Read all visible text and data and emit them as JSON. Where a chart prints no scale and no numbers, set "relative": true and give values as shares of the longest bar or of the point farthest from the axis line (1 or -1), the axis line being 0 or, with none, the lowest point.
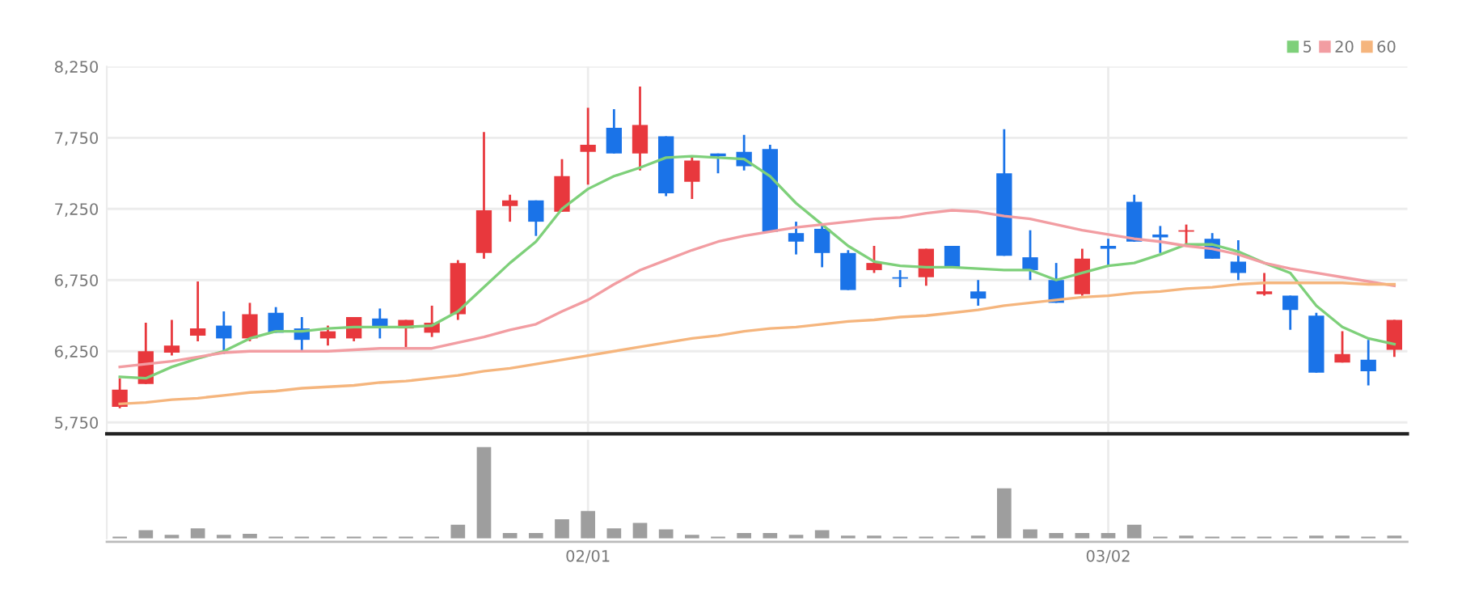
{
  "chart_data": [
    {
      "type": "candlestick",
      "categories": [
        null,
        null,
        null,
        null,
        null,
        null,
        null,
        null,
        null,
        null,
        null,
        null,
        null,
        null,
        null,
        null,
        null,
        null,
        null,
        null,
        null,
        null,
        null,
        null,
        null,
        null,
        null,
        null,
        null,
        null,
        null,
        null,
        null,
        null,
        null,
        null,
        null,
        null,
        null,
        null,
        null,
        null,
        null,
        null,
        null,
        null,
        null,
        null,
        null,
        null
      ],
      "ohlc": [
        [
          5860,
          6060,
          5850,
          5980
        ],
        [
          6020,
          6450,
          6020,
          6250
        ],
        [
          6240,
          6470,
          6220,
          6290
        ],
        [
          6360,
          6740,
          6320,
          6410
        ],
        [
          6430,
          6530,
          6230,
          6340
        ],
        [
          6340,
          6590,
          6320,
          6510
        ],
        [
          6520,
          6560,
          6380,
          6380
        ],
        [
          6410,
          6490,
          6250,
          6330
        ],
        [
          6340,
          6430,
          6290,
          6390
        ],
        [
          6340,
          6490,
          6320,
          6490
        ],
        [
          6480,
          6550,
          6340,
          6420
        ],
        [
          6410,
          6470,
          6280,
          6470
        ],
        [
          6380,
          6570,
          6350,
          6450
        ],
        [
          6510,
          6890,
          6470,
          6870
        ],
        [
          6940,
          7790,
          6900,
          7240
        ],
        [
          7270,
          7350,
          7160,
          7310
        ],
        [
          7310,
          7310,
          7060,
          7160
        ],
        [
          7230,
          7600,
          7230,
          7480
        ],
        [
          7650,
          7960,
          7420,
          7700
        ],
        [
          7820,
          7950,
          7640,
          7640
        ],
        [
          7640,
          8110,
          7520,
          7840
        ],
        [
          7760,
          7760,
          7340,
          7360
        ],
        [
          7440,
          7610,
          7320,
          7590
        ],
        [
          7640,
          7640,
          7500,
          7620
        ],
        [
          7650,
          7770,
          7520,
          7550
        ],
        [
          7670,
          7700,
          7090,
          7090
        ],
        [
          7080,
          7160,
          6930,
          7020
        ],
        [
          7110,
          7140,
          6840,
          6940
        ],
        [
          6940,
          6960,
          6680,
          6680
        ],
        [
          6820,
          6990,
          6800,
          6870
        ],
        [
          6770,
          6820,
          6700,
          6760
        ],
        [
          6770,
          6970,
          6710,
          6970
        ],
        [
          6990,
          6990,
          6840,
          6840
        ],
        [
          6670,
          6750,
          6570,
          6620
        ],
        [
          7500,
          7810,
          6920,
          6920
        ],
        [
          6910,
          7100,
          6750,
          6820
        ],
        [
          6750,
          6870,
          6590,
          6590
        ],
        [
          6650,
          6970,
          6640,
          6900
        ],
        [
          6990,
          7040,
          6850,
          6970
        ],
        [
          7300,
          7350,
          7020,
          7020
        ],
        [
          7070,
          7130,
          6940,
          7050
        ],
        [
          7090,
          7140,
          6990,
          7100
        ],
        [
          7040,
          7080,
          6900,
          6900
        ],
        [
          6880,
          7030,
          6750,
          6800
        ],
        [
          6650,
          6800,
          6640,
          6670
        ],
        [
          6640,
          6640,
          6400,
          6540
        ],
        [
          6500,
          6520,
          6100,
          6100
        ],
        [
          6170,
          6390,
          6170,
          6230
        ],
        [
          6190,
          6330,
          6010,
          6110
        ],
        [
          6260,
          6470,
          6210,
          6470
        ]
      ],
      "colors": [
        "#e8383d",
        "#e8383d",
        "#e8383d",
        "#e8383d",
        "#1a73e8",
        "#e8383d",
        "#1a73e8",
        "#1a73e8",
        "#e8383d",
        "#e8383d",
        "#1a73e8",
        "#e8383d",
        "#e8383d",
        "#e8383d",
        "#e8383d",
        "#e8383d",
        "#1a73e8",
        "#e8383d",
        "#e8383d",
        "#1a73e8",
        "#e8383d",
        "#1a73e8",
        "#e8383d",
        "#1a73e8",
        "#1a73e8",
        "#1a73e8",
        "#1a73e8",
        "#1a73e8",
        "#1a73e8",
        "#e8383d",
        "#1a73e8",
        "#e8383d",
        "#1a73e8",
        "#1a73e8",
        "#1a73e8",
        "#1a73e8",
        "#1a73e8",
        "#e8383d",
        "#1a73e8",
        "#1a73e8",
        "#1a73e8",
        "#e8383d",
        "#1a73e8",
        "#1a73e8",
        "#e8383d",
        "#1a73e8",
        "#1a73e8",
        "#e8383d",
        "#1a73e8",
        "#e8383d"
      ],
      "series": [
        {
          "type": "line",
          "name": "5",
          "color": "#7ed07a",
          "values": [
            6070,
            6060,
            6140,
            6200,
            6250,
            6340,
            6390,
            6390,
            6410,
            6420,
            6420,
            6420,
            6430,
            6530,
            6700,
            6870,
            7020,
            7250,
            7390,
            7480,
            7540,
            7610,
            7620,
            7610,
            7600,
            7480,
            7290,
            7140,
            6990,
            6880,
            6850,
            6840,
            6840,
            6830,
            6820,
            6820,
            6750,
            6800,
            6850,
            6870,
            6930,
            7000,
            7000,
            6950,
            6870,
            6800,
            6570,
            6420,
            6340,
            6300
          ]
        },
        {
          "type": "line",
          "name": "20",
          "color": "#f29da2",
          "values": [
            6140,
            6160,
            6180,
            6210,
            6240,
            6250,
            6250,
            6250,
            6250,
            6260,
            6270,
            6270,
            6270,
            6310,
            6350,
            6400,
            6440,
            6530,
            6610,
            6720,
            6820,
            6890,
            6960,
            7020,
            7060,
            7090,
            7120,
            7140,
            7160,
            7180,
            7190,
            7220,
            7240,
            7230,
            7200,
            7180,
            7140,
            7100,
            7070,
            7040,
            7020,
            6990,
            6970,
            6930,
            6870,
            6830,
            6800,
            6770,
            6740,
            6710
          ]
        },
        {
          "type": "line",
          "name": "60",
          "color": "#f5b57d",
          "values": [
            5880,
            5890,
            5910,
            5920,
            5940,
            5960,
            5970,
            5990,
            6000,
            6010,
            6030,
            6040,
            6060,
            6080,
            6110,
            6130,
            6160,
            6190,
            6220,
            6250,
            6280,
            6310,
            6340,
            6360,
            6390,
            6410,
            6420,
            6440,
            6460,
            6470,
            6490,
            6500,
            6520,
            6540,
            6570,
            6590,
            6610,
            6630,
            6640,
            6660,
            6670,
            6690,
            6700,
            6720,
            6730,
            6730,
            6730,
            6730,
            6720,
            6720
          ]
        }
      ],
      "ylim": [
        5670,
        8250
      ],
      "yticks": [
        {
          "value": 5750,
          "label": "5,750"
        },
        {
          "value": 6250,
          "label": "6,250"
        },
        {
          "value": 6750,
          "label": "6,750"
        },
        {
          "value": 7250,
          "label": "7,250"
        },
        {
          "value": 7750,
          "label": "7,750"
        },
        {
          "value": 8250,
          "label": "8,250"
        }
      ],
      "grid": true,
      "legend": "top right",
      "tick_labels": "y"
    },
    {
      "type": "bar",
      "categories": [
        null,
        null,
        null,
        null,
        null,
        null,
        null,
        null,
        null,
        null,
        null,
        null,
        null,
        null,
        null,
        null,
        null,
        null,
        "02/01",
        null,
        null,
        null,
        null,
        null,
        null,
        null,
        null,
        null,
        null,
        null,
        null,
        null,
        null,
        null,
        null,
        null,
        null,
        null,
        "03/02",
        null,
        null,
        null,
        null,
        null,
        null,
        null,
        null,
        null,
        null,
        null
      ],
      "values": [
        0.02,
        0.09,
        0.04,
        0.11,
        0.04,
        0.05,
        0.02,
        0.02,
        0.02,
        0.02,
        0.02,
        0.02,
        0.02,
        0.15,
        1,
        0.06,
        0.06,
        0.21,
        0.3,
        0.11,
        0.17,
        0.1,
        0.04,
        0.02,
        0.06,
        0.06,
        0.04,
        0.09,
        0.03,
        0.03,
        0.02,
        0.02,
        0.02,
        0.03,
        0.55,
        0.1,
        0.06,
        0.06,
        0.06,
        0.15,
        0.02,
        0.03,
        0.02,
        0.02,
        0.02,
        0.02,
        0.03,
        0.03,
        0.02,
        0.03
      ],
      "color": "#9e9e9e",
      "relative": true,
      "grid": "x",
      "tick_labels": "x"
    }
  ]
}
